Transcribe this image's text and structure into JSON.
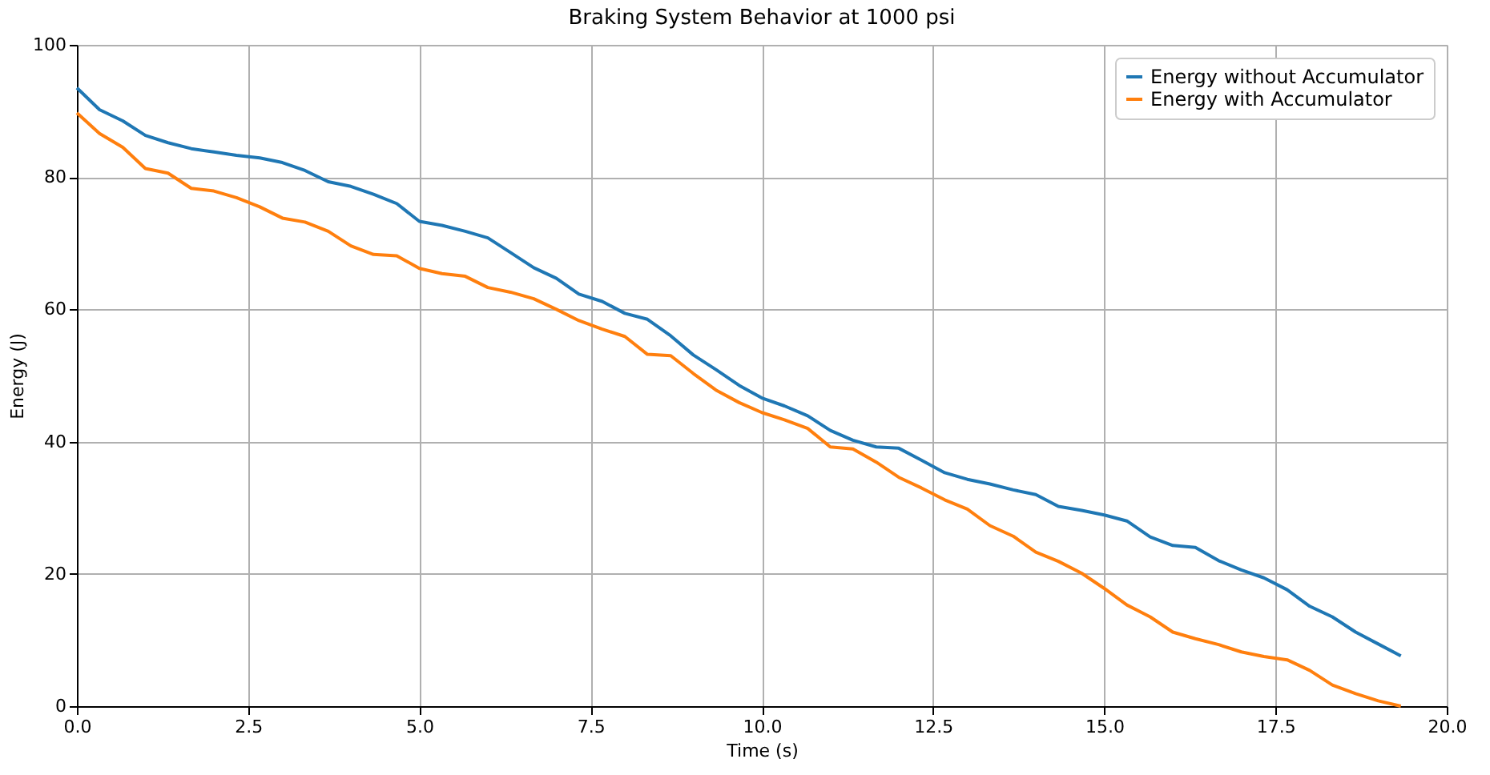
{
  "chart_data": {
    "type": "line",
    "title": "Braking System Behavior at 1000 psi",
    "xlabel": "Time (s)",
    "ylabel": "Energy (J)",
    "x": [
      0,
      0.33,
      0.67,
      1,
      1.33,
      1.67,
      2,
      2.33,
      2.67,
      3,
      3.33,
      3.67,
      4,
      4.33,
      4.67,
      5,
      5.33,
      5.67,
      6,
      6.33,
      6.67,
      7,
      7.33,
      7.67,
      8,
      8.33,
      8.67,
      9,
      9.33,
      9.67,
      10,
      10.33,
      10.67,
      11,
      11.33,
      11.67,
      12,
      12.33,
      12.67,
      13,
      13.33,
      13.67,
      14,
      14.33,
      14.67,
      15,
      15.33,
      15.67,
      16,
      16.33,
      16.67,
      17,
      17.33,
      17.67,
      18,
      18.33,
      18.67,
      19,
      19.33
    ],
    "series": [
      {
        "name": "Energy without Accumulator",
        "color": "#1f77b4",
        "values": [
          93.5,
          90.2,
          88.5,
          86.3,
          85.2,
          84.3,
          83.8,
          83.3,
          82.9,
          82.2,
          81.0,
          79.3,
          78.6,
          77.4,
          76.0,
          73.3,
          72.7,
          71.8,
          70.8,
          68.6,
          66.3,
          64.7,
          62.3,
          61.2,
          59.4,
          58.5,
          56.0,
          53.1,
          50.9,
          48.5,
          46.6,
          45.4,
          43.9,
          41.7,
          40.2,
          39.2,
          39.0,
          37.2,
          35.3,
          34.3,
          33.6,
          32.7,
          32.0,
          30.2,
          29.6,
          28.9,
          28.0,
          25.6,
          24.3,
          24.0,
          22.0,
          20.6,
          19.4,
          17.6,
          15.1,
          13.5,
          11.2,
          9.4,
          7.6
        ]
      },
      {
        "name": "Energy with Accumulator",
        "color": "#ff7f0e",
        "values": [
          89.7,
          86.6,
          84.5,
          81.3,
          80.6,
          78.3,
          77.9,
          76.9,
          75.5,
          73.8,
          73.2,
          71.8,
          69.6,
          68.3,
          68.1,
          66.2,
          65.4,
          65.0,
          63.3,
          62.6,
          61.6,
          60.0,
          58.3,
          57.0,
          55.9,
          53.2,
          53.0,
          50.3,
          47.8,
          45.9,
          44.4,
          43.3,
          42.0,
          39.2,
          38.9,
          36.9,
          34.6,
          33.0,
          31.2,
          29.8,
          27.3,
          25.7,
          23.3,
          21.9,
          20.1,
          17.8,
          15.3,
          13.5,
          11.2,
          10.2,
          9.3,
          8.2,
          7.5,
          7.0,
          5.4,
          3.2,
          1.9,
          0.8,
          0.0
        ]
      }
    ],
    "xlim": [
      0,
      20
    ],
    "ylim": [
      0,
      100
    ],
    "xticks": [
      {
        "value": 0,
        "label": "0.0"
      },
      {
        "value": 2.5,
        "label": "2.5"
      },
      {
        "value": 5,
        "label": "5.0"
      },
      {
        "value": 7.5,
        "label": "7.5"
      },
      {
        "value": 10,
        "label": "10.0"
      },
      {
        "value": 12.5,
        "label": "12.5"
      },
      {
        "value": 15,
        "label": "15.0"
      },
      {
        "value": 17.5,
        "label": "17.5"
      },
      {
        "value": 20,
        "label": "20.0"
      }
    ],
    "yticks": [
      0,
      20,
      40,
      60,
      80,
      100
    ],
    "grid": true,
    "legend": "top right",
    "line_style": "solid",
    "marker": "none"
  }
}
